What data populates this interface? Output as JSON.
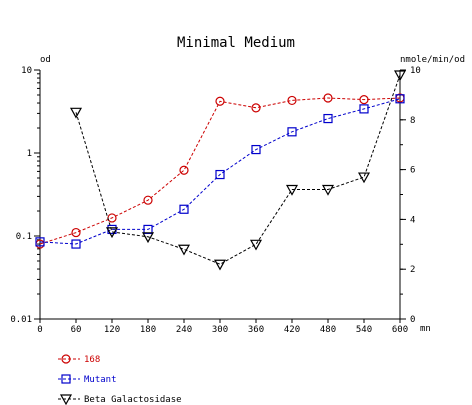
{
  "chart_data": {
    "type": "line",
    "title": "Minimal Medium",
    "x": [
      0,
      60,
      120,
      180,
      240,
      300,
      360,
      420,
      480,
      540,
      600
    ],
    "x_ticks": [
      "0",
      "60",
      "120",
      "180",
      "240",
      "300",
      "360",
      "420",
      "480",
      "540",
      "600"
    ],
    "xlabel": "mn",
    "xlim": [
      0,
      600
    ],
    "y_left": {
      "label": "od",
      "scale": "log",
      "lim": [
        0.01,
        10
      ],
      "ticks": [
        {
          "value": 10,
          "label": "10"
        },
        {
          "value": 1,
          "label": "1"
        },
        {
          "value": 0.1,
          "label": "0.1"
        },
        {
          "value": 0.01,
          "label": "0.01"
        }
      ]
    },
    "y_right": {
      "label": "nmole/min/od",
      "scale": "linear",
      "lim": [
        0,
        10
      ],
      "ticks": [
        {
          "value": 10,
          "label": "10"
        },
        {
          "value": 8,
          "label": "8"
        },
        {
          "value": 6,
          "label": "6"
        },
        {
          "value": 4,
          "label": "4"
        },
        {
          "value": 2,
          "label": "2"
        },
        {
          "value": 0,
          "label": "0"
        }
      ]
    },
    "grid": false,
    "legend_position": "bottom-left",
    "series": [
      {
        "name": "168",
        "axis": "left",
        "marker": "circle",
        "color": "#cc0000",
        "x": [
          0,
          60,
          120,
          180,
          240,
          300,
          360,
          420,
          480,
          540,
          600
        ],
        "values": [
          0.08,
          0.11,
          0.165,
          0.27,
          0.62,
          4.2,
          3.5,
          4.3,
          4.6,
          4.4,
          4.6
        ]
      },
      {
        "name": "Mutant",
        "axis": "left",
        "marker": "square",
        "color": "#0000cc",
        "x": [
          0,
          60,
          120,
          180,
          240,
          300,
          360,
          420,
          480,
          540,
          600
        ],
        "values": [
          0.085,
          0.08,
          0.12,
          0.12,
          0.21,
          0.55,
          1.1,
          1.8,
          2.6,
          3.4,
          4.5
        ]
      },
      {
        "name": "Beta Galactosidase",
        "axis": "right",
        "marker": "triangle-down",
        "color": "#000000",
        "x": [
          60,
          120,
          180,
          240,
          300,
          360,
          420,
          480,
          540,
          600
        ],
        "values": [
          8.3,
          3.5,
          3.3,
          2.8,
          2.2,
          3.0,
          5.2,
          5.2,
          5.7,
          9.8
        ]
      }
    ]
  }
}
